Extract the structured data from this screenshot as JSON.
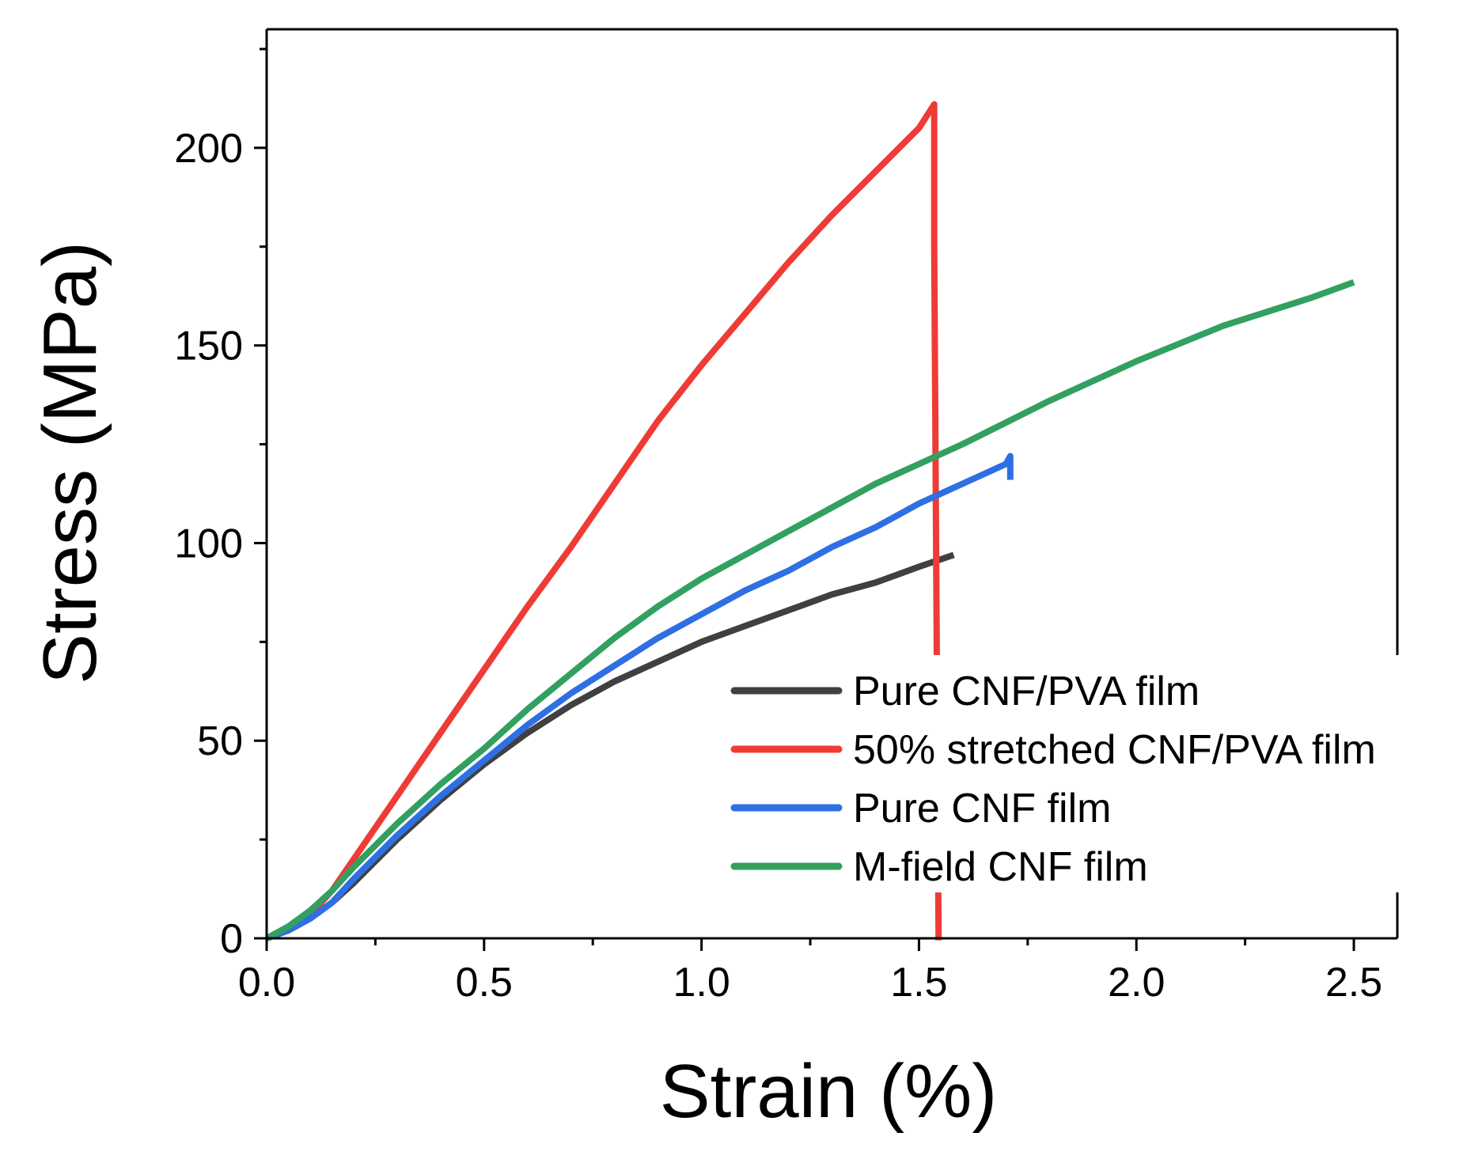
{
  "chart_data": {
    "type": "line",
    "title": "",
    "xlabel": "Strain (%)",
    "ylabel": "Stress (MPa)",
    "xlim": [
      0,
      2.6
    ],
    "ylim": [
      0,
      230
    ],
    "xticks": [
      0.0,
      0.5,
      1.0,
      1.5,
      2.0,
      2.5
    ],
    "xtick_labels": [
      "0.0",
      "0.5",
      "1.0",
      "1.5",
      "2.0",
      "2.5"
    ],
    "yticks": [
      0,
      50,
      100,
      150,
      200
    ],
    "ytick_labels": [
      "0",
      "50",
      "100",
      "150",
      "200"
    ],
    "grid": false,
    "legend_position": "bottom-right",
    "series": [
      {
        "name": "Pure CNF/PVA film",
        "color": "#404040",
        "x": [
          0.0,
          0.05,
          0.1,
          0.15,
          0.2,
          0.3,
          0.4,
          0.5,
          0.6,
          0.7,
          0.8,
          0.9,
          1.0,
          1.1,
          1.2,
          1.3,
          1.4,
          1.5,
          1.58
        ],
        "y": [
          0,
          2,
          5,
          9,
          14,
          25,
          35,
          44,
          52,
          59,
          65,
          70,
          75,
          79,
          83,
          87,
          90,
          94,
          97
        ]
      },
      {
        "name": "50% stretched CNF/PVA film",
        "color": "#ef3b36",
        "x": [
          0.0,
          0.05,
          0.1,
          0.15,
          0.2,
          0.3,
          0.4,
          0.5,
          0.6,
          0.7,
          0.8,
          0.9,
          1.0,
          1.1,
          1.2,
          1.3,
          1.4,
          1.5,
          1.535,
          1.535,
          1.545
        ],
        "y": [
          0,
          2,
          6,
          12,
          20,
          36,
          52,
          68,
          84,
          99,
          115,
          131,
          145,
          158,
          171,
          183,
          194,
          205,
          211,
          175,
          -0.5
        ]
      },
      {
        "name": "Pure CNF film",
        "color": "#2f6fe4",
        "x": [
          0.0,
          0.05,
          0.1,
          0.15,
          0.2,
          0.3,
          0.4,
          0.5,
          0.6,
          0.7,
          0.8,
          0.9,
          1.0,
          1.1,
          1.2,
          1.3,
          1.4,
          1.5,
          1.6,
          1.7,
          1.71,
          1.71
        ],
        "y": [
          0,
          2,
          5,
          9,
          15,
          26,
          36,
          45,
          54,
          62,
          69,
          76,
          82,
          88,
          93,
          99,
          104,
          110,
          115,
          120,
          122,
          116
        ]
      },
      {
        "name": "M-field CNF film",
        "color": "#32a060",
        "x": [
          0.0,
          0.05,
          0.1,
          0.15,
          0.2,
          0.3,
          0.4,
          0.5,
          0.6,
          0.7,
          0.8,
          0.9,
          1.0,
          1.2,
          1.4,
          1.6,
          1.8,
          2.0,
          2.2,
          2.4,
          2.5
        ],
        "y": [
          0,
          3,
          7,
          12,
          18,
          29,
          39,
          48,
          58,
          67,
          76,
          84,
          91,
          103,
          115,
          125,
          136,
          146,
          155,
          162,
          166
        ]
      }
    ]
  }
}
